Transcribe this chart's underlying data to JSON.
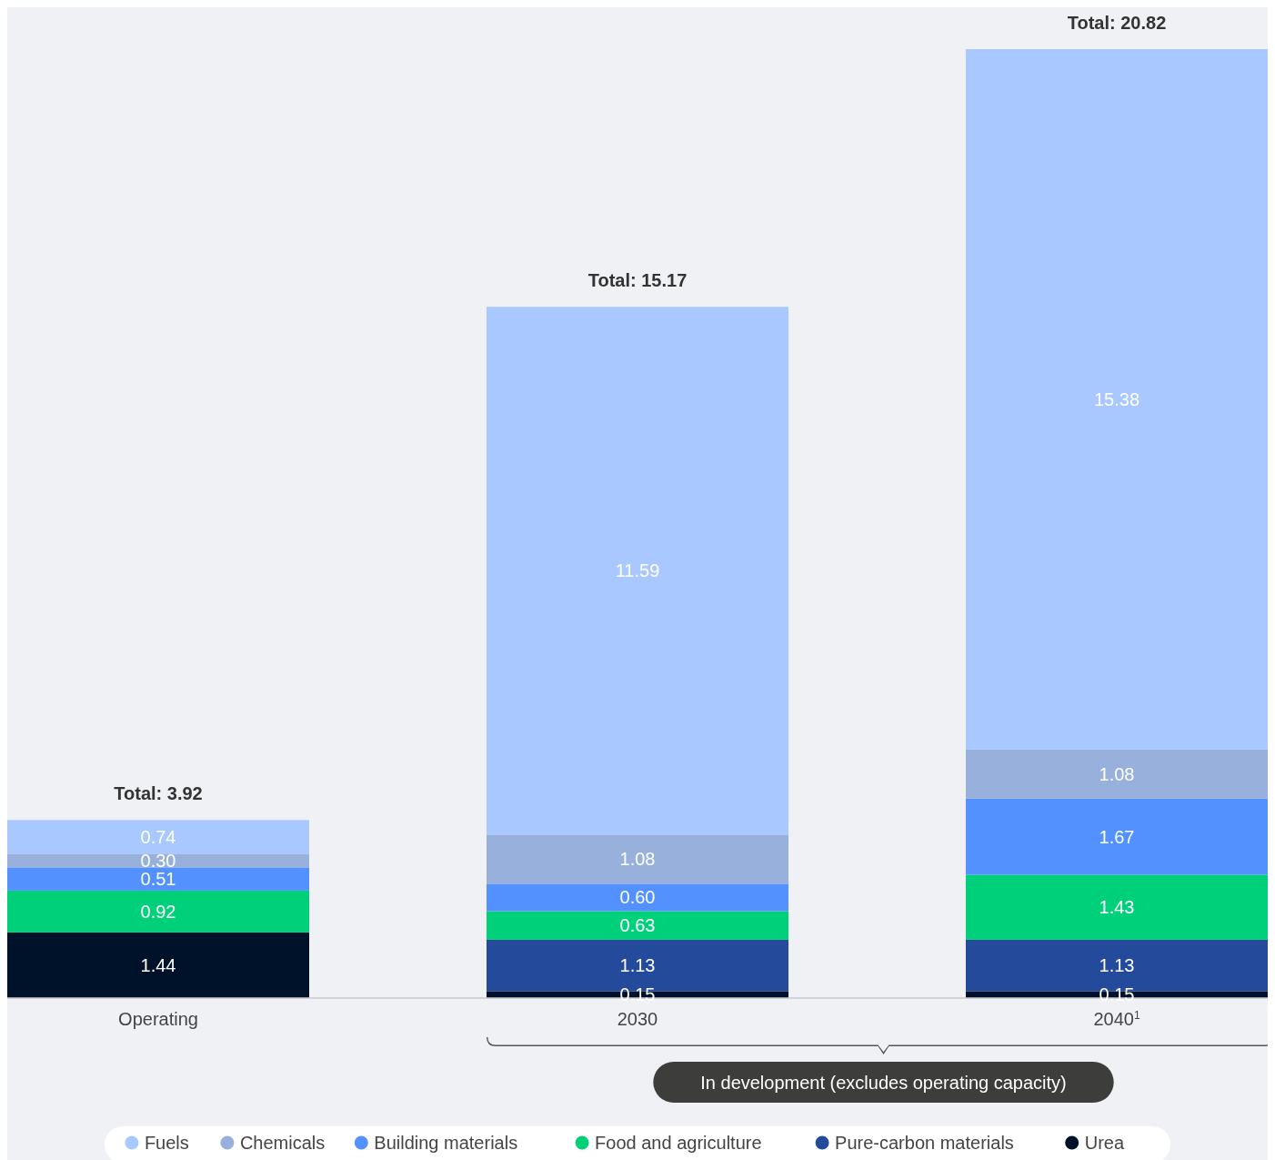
{
  "chart_data": {
    "type": "bar",
    "stacked": true,
    "categories": [
      "Operating",
      "2030",
      "2040$^{1}$"
    ],
    "series": [
      {
        "name": "Urea",
        "color": "#00112a",
        "values": [
          1.44,
          0.15,
          0.15
        ],
        "value_labels": [
          "1.44",
          "0.15",
          "0.15"
        ]
      },
      {
        "name": "Pure-carbon materials",
        "color": "#244a9c",
        "values": [
          null,
          1.13,
          1.13
        ],
        "value_labels": [
          null,
          "1.13",
          "1.13"
        ]
      },
      {
        "name": "Food and agriculture",
        "color": "#00d07a",
        "values": [
          0.92,
          0.63,
          1.43
        ],
        "value_labels": [
          "0.92",
          "0.63",
          "1.43"
        ]
      },
      {
        "name": "Building materials",
        "color": "#5291ff",
        "values": [
          0.51,
          0.6,
          1.67
        ],
        "value_labels": [
          "0.51",
          "0.60",
          "1.67"
        ]
      },
      {
        "name": "Chemicals",
        "color": "#97b0dc",
        "values": [
          0.3,
          1.08,
          1.08
        ],
        "value_labels": [
          "0.30",
          "1.08",
          "1.08"
        ]
      },
      {
        "name": "Fuels",
        "color": "#a8c8ff",
        "values": [
          0.74,
          11.59,
          15.38
        ],
        "value_labels": [
          "0.74",
          "11.59",
          "15.38"
        ]
      }
    ],
    "totals": [
      "Total: 3.92",
      "Total: 15.17",
      "Total: 20.82"
    ],
    "annotations": [
      "In development (excludes operating capacity)"
    ],
    "legend": "bottom",
    "marker": "circle"
  }
}
